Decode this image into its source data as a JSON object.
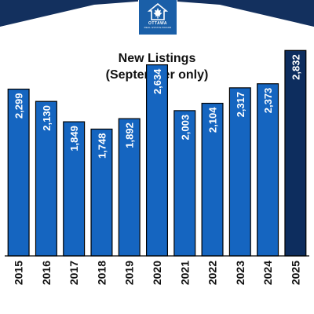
{
  "brand": {
    "logo_word": "OTTAWA",
    "logo_sub": "REAL ESTATE BOARD",
    "band_color": "#13305e",
    "logo_color": "#1a5fa8"
  },
  "chart_data": {
    "type": "bar",
    "title": "New Listings",
    "subtitle": "(September only)",
    "categories": [
      "2015",
      "2016",
      "2017",
      "2018",
      "2019",
      "2020",
      "2021",
      "2022",
      "2023",
      "2024",
      "2025"
    ],
    "values": [
      2299,
      2130,
      1849,
      1748,
      1892,
      2634,
      2003,
      2104,
      2317,
      2373,
      2832
    ],
    "value_labels": [
      "2,299",
      "2,130",
      "1,849",
      "1,748",
      "1,892",
      "2,634",
      "2,003",
      "2,104",
      "2,317",
      "2,373",
      "2,832"
    ],
    "bar_color": "#1565c0",
    "highlight_color": "#0d2d5e",
    "highlight_index": 10,
    "ylim": [
      0,
      2900
    ],
    "xlabel": "",
    "ylabel": "",
    "grid": false,
    "legend": "none"
  }
}
